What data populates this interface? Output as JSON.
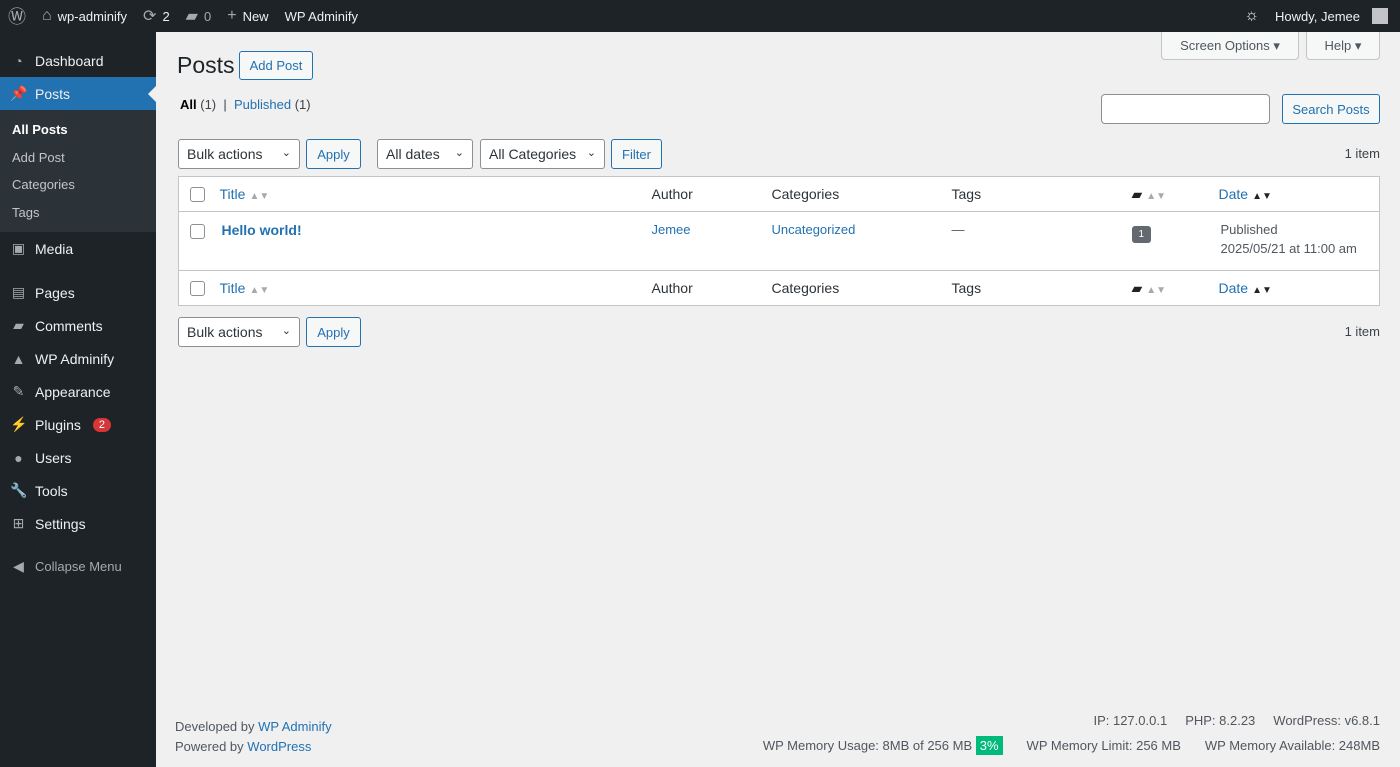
{
  "adminbar": {
    "site": "wp-adminify",
    "updates": "2",
    "comments": "0",
    "new": "New",
    "plugin": "WP Adminify",
    "howdy": "Howdy, Jemee"
  },
  "sidebar": {
    "items": [
      {
        "label": "Dashboard",
        "icon": "dashboard-icon",
        "glyph": "◔"
      },
      {
        "label": "Posts",
        "icon": "pin-icon",
        "glyph": "📌"
      },
      {
        "label": "Media",
        "icon": "media-icon",
        "glyph": "▣"
      },
      {
        "label": "Pages",
        "icon": "pages-icon",
        "glyph": "▤"
      },
      {
        "label": "Comments",
        "icon": "comment-icon",
        "glyph": "▰"
      },
      {
        "label": "WP Adminify",
        "icon": "adminify-icon",
        "glyph": "▲"
      },
      {
        "label": "Appearance",
        "icon": "brush-icon",
        "glyph": "✎"
      },
      {
        "label": "Plugins",
        "icon": "plugin-icon",
        "glyph": "⚡",
        "badge": "2"
      },
      {
        "label": "Users",
        "icon": "user-icon",
        "glyph": "●"
      },
      {
        "label": "Tools",
        "icon": "wrench-icon",
        "glyph": "🔧"
      },
      {
        "label": "Settings",
        "icon": "settings-icon",
        "glyph": "⊞"
      }
    ],
    "submenu": [
      "All Posts",
      "Add Post",
      "Categories",
      "Tags"
    ],
    "collapse": "Collapse Menu"
  },
  "header": {
    "title": "Posts",
    "add": "Add Post",
    "screen_options": "Screen Options",
    "help": "Help"
  },
  "filters": {
    "all": "All",
    "all_count": "(1)",
    "published": "Published",
    "published_count": "(1)",
    "search_button": "Search Posts",
    "search_value": "",
    "bulk": "Bulk actions",
    "apply": "Apply",
    "dates": "All dates",
    "categories": "All Categories",
    "filter": "Filter",
    "count": "1 item"
  },
  "table": {
    "columns": [
      "Title",
      "Author",
      "Categories",
      "Tags",
      "Date"
    ],
    "rows": [
      {
        "title": "Hello world!",
        "author": "Jemee",
        "categories": "Uncategorized",
        "tags": "—",
        "comments": "1",
        "status": "Published",
        "date": "2025/05/21 at 11:00 am"
      }
    ]
  },
  "footer": {
    "developed": "Developed by",
    "developed_link": "WP Adminify",
    "powered": "Powered by",
    "powered_link": "WordPress",
    "ip": "IP: 127.0.0.1",
    "php": "PHP: 8.2.23",
    "wp": "WordPress: v6.8.1",
    "mem_usage": "WP Memory Usage: 8MB of 256 MB",
    "mem_pct": "3%",
    "mem_limit": "WP Memory Limit: 256 MB",
    "mem_avail": "WP Memory Available: 248MB"
  },
  "colors": {
    "accent": "#2271b1",
    "sidebar": "#1d2327",
    "memory_badge": "#00ba7c"
  }
}
